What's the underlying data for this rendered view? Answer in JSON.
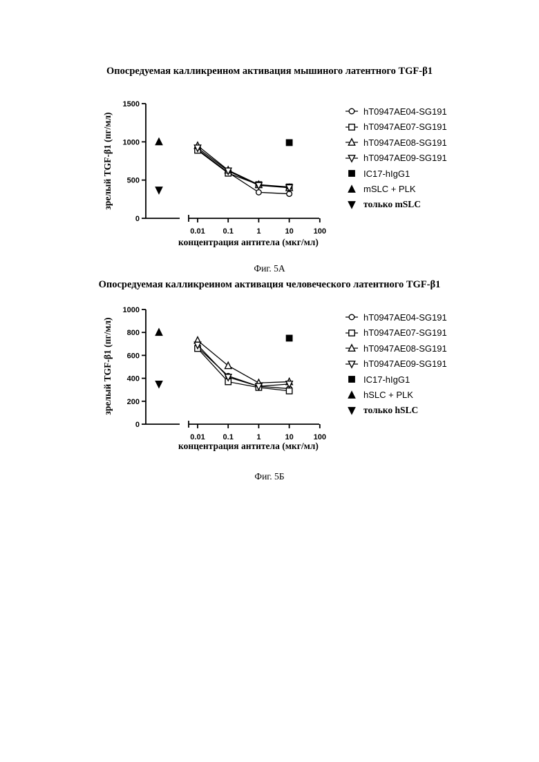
{
  "figures": [
    {
      "title": "Опосредуемая калликреином активация мышиного латентного TGF-β1",
      "caption": "Фиг. 5А",
      "legend": [
        "hT0947AE04-SG191",
        "hT0947AE07-SG191",
        "hT0947AE08-SG191",
        "hT0947AE09-SG191",
        "IC17-hIgG1",
        "mSLC + PLK",
        "только mSLC"
      ]
    },
    {
      "title": "Опосредуемая калликреином активация человеческого латентного TGF-β1",
      "caption": "Фиг. 5Б",
      "legend": [
        "hT0947AE04-SG191",
        "hT0947AE07-SG191",
        "hT0947AE08-SG191",
        "hT0947AE09-SG191",
        "IC17-hIgG1",
        "hSLC + PLK",
        "только hSLC"
      ]
    }
  ],
  "chart_data": [
    {
      "type": "line",
      "title": "Опосредуемая калликреином активация мышиного латентного TGF-β1",
      "xlabel": "концентрация антитела (мкг/мл)",
      "ylabel": "зрелый TGF-β1 (пг/мл)",
      "xscale": "log",
      "xticks": [
        "0.01",
        "0.1",
        "1",
        "10",
        "100"
      ],
      "yticks": [
        "0",
        "500",
        "1000",
        "1500"
      ],
      "ylim": [
        0,
        1500
      ],
      "x": [
        0.01,
        0.1,
        1,
        10
      ],
      "series": [
        {
          "name": "hT0947AE04-SG191",
          "marker": "circle",
          "values": [
            900,
            600,
            340,
            320
          ]
        },
        {
          "name": "hT0947AE07-SG191",
          "marker": "square-open",
          "values": [
            890,
            590,
            440,
            410
          ]
        },
        {
          "name": "hT0947AE08-SG191",
          "marker": "triangle-up-open",
          "values": [
            950,
            630,
            440,
            400
          ]
        },
        {
          "name": "hT0947AE09-SG191",
          "marker": "triangle-down-open",
          "values": [
            920,
            620,
            430,
            400
          ]
        }
      ],
      "points": [
        {
          "name": "IC17-hIgG1",
          "marker": "square",
          "x": 10,
          "value": 990
        },
        {
          "name": "mSLC + PLK",
          "marker": "triangle-up",
          "x": "control",
          "value": 1000
        },
        {
          "name": "только mSLC",
          "marker": "triangle-down",
          "x": "control",
          "value": 370
        }
      ]
    },
    {
      "type": "line",
      "title": "Опосредуемая калликреином активация человеческого латентного TGF-β1",
      "xlabel": "концентрация антитела (мкг/мл)",
      "ylabel": "зрелый TGF-β1 (пг/мл)",
      "xscale": "log",
      "xticks": [
        "0.01",
        "0.1",
        "1",
        "10",
        "100"
      ],
      "yticks": [
        "0",
        "200",
        "400",
        "600",
        "800",
        "1000"
      ],
      "ylim": [
        0,
        1000
      ],
      "x": [
        0.01,
        0.1,
        1,
        10
      ],
      "series": [
        {
          "name": "hT0947AE04-SG191",
          "marker": "circle",
          "values": [
            670,
            420,
            330,
            310
          ]
        },
        {
          "name": "hT0947AE07-SG191",
          "marker": "square-open",
          "values": [
            660,
            370,
            320,
            290
          ]
        },
        {
          "name": "hT0947AE08-SG191",
          "marker": "triangle-up-open",
          "values": [
            730,
            510,
            360,
            370
          ]
        },
        {
          "name": "hT0947AE09-SG191",
          "marker": "triangle-down-open",
          "values": [
            690,
            410,
            330,
            350
          ]
        }
      ],
      "points": [
        {
          "name": "IC17-hIgG1",
          "marker": "square",
          "x": 10,
          "value": 750
        },
        {
          "name": "hSLC + PLK",
          "marker": "triangle-up",
          "x": "control",
          "value": 800
        },
        {
          "name": "только hSLC",
          "marker": "triangle-down",
          "x": "control",
          "value": 350
        }
      ]
    }
  ]
}
